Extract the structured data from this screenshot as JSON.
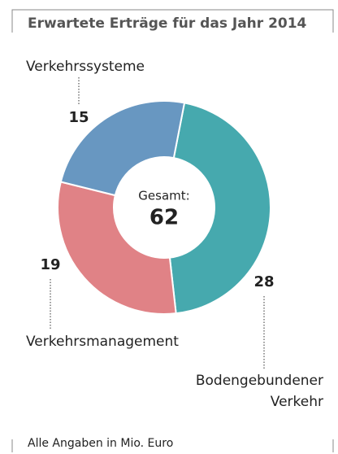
{
  "chart_data": {
    "type": "donut",
    "title": "Erwartete Erträge für das Jahr 2014",
    "categories": [
      [
        "Bodengebundener",
        "Verkehr"
      ],
      [
        "Verkehrsmanagement"
      ],
      [
        "Verkehrssysteme"
      ]
    ],
    "values": [
      28,
      19,
      15
    ],
    "colors": [
      "#46a9ae",
      "#e08286",
      "#6897c1"
    ],
    "total_label": "Gesamt:",
    "total": 62,
    "footnote": "Alle Angaben in Mio. Euro"
  }
}
